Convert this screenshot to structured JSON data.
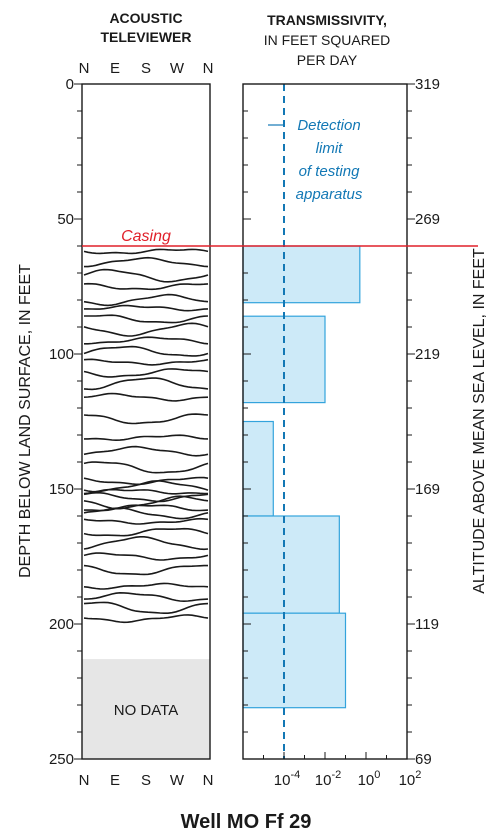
{
  "left_panel": {
    "title_line1": "ACOUSTIC",
    "title_line2": "TELEVIEWER",
    "compass_top": [
      "N",
      "E",
      "S",
      "W",
      "N"
    ],
    "compass_bottom": [
      "N",
      "E",
      "S",
      "W",
      "N"
    ],
    "no_data_label": "NO DATA",
    "no_data_depth_range": [
      213,
      250
    ],
    "fracture_depths_ft": [
      62,
      66,
      71,
      75,
      80,
      83,
      87,
      91,
      95,
      99,
      103,
      107,
      111,
      116,
      124,
      131,
      136,
      142,
      147,
      149,
      151,
      153,
      155,
      157,
      159,
      162,
      166,
      170,
      175,
      180,
      186,
      190,
      194,
      198
    ]
  },
  "right_panel": {
    "title_line1": "TRANSMISSIVITY,",
    "title_line2": "IN FEET SQUARED",
    "title_line3": "PER DAY",
    "x_tick_labels": [
      {
        "base": "10",
        "exp": "-4"
      },
      {
        "base": "10",
        "exp": "-2"
      },
      {
        "base": "10",
        "exp": "0"
      },
      {
        "base": "10",
        "exp": "2"
      }
    ],
    "x_log_range": [
      -6,
      2
    ],
    "detection_limit_log10": -4,
    "detection_label_lines": [
      "Detection",
      "limit",
      "of testing",
      "apparatus"
    ]
  },
  "casing": {
    "label": "Casing",
    "depth_ft": 60
  },
  "left_axis": {
    "label": "DEPTH BELOW LAND SURFACE, IN FEET",
    "range": [
      0,
      250
    ],
    "tick_labels": [
      "0",
      "50",
      "100",
      "150",
      "200",
      "250"
    ]
  },
  "right_axis": {
    "label": "ALTITUDE ABOVE MEAN SEA LEVEL, IN FEET",
    "range": [
      319,
      69
    ],
    "tick_labels": [
      "319",
      "269",
      "219",
      "169",
      "119",
      "69"
    ]
  },
  "caption": "Well MO Ff 29",
  "colors": {
    "interval_fill": "#cdeaf8",
    "interval_stroke": "#33a3dc",
    "detection_line": "#1378b5",
    "casing": "#e0202a",
    "no_data": "#e6e6e6"
  },
  "chart_data": {
    "type": "bar",
    "orientation": "horizontal",
    "x_scale": "log",
    "xlim_log10": [
      -6,
      2
    ],
    "ylim": [
      0,
      250
    ],
    "ylabel": "DEPTH BELOW LAND SURFACE, IN FEET",
    "y2label": "ALTITUDE ABOVE MEAN SEA LEVEL, IN FEET",
    "xlabel": "TRANSMISSIVITY, IN FEET SQUARED PER DAY",
    "intervals": [
      {
        "top_ft": 60,
        "bottom_ft": 81,
        "transmissivity": 0.5
      },
      {
        "top_ft": 86,
        "bottom_ft": 118,
        "transmissivity": 0.01
      },
      {
        "top_ft": 125,
        "bottom_ft": 160,
        "transmissivity": 3e-05
      },
      {
        "top_ft": 160,
        "bottom_ft": 196,
        "transmissivity": 0.05
      },
      {
        "top_ft": 196,
        "bottom_ft": 231,
        "transmissivity": 0.1
      }
    ]
  }
}
